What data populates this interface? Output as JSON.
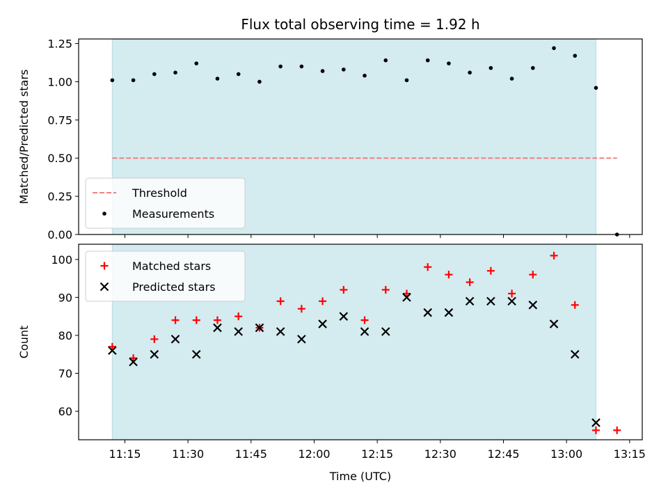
{
  "title": "Flux total observing time = 1.92 h",
  "chart_data": [
    {
      "type": "scatter",
      "ylabel": "Matched/Predicted stars",
      "ylim": [
        0,
        1.28
      ],
      "yticks": [
        "0.00",
        "0.25",
        "0.50",
        "0.75",
        "1.00",
        "1.25"
      ],
      "xlim": [
        "11:04",
        "13:18"
      ],
      "shaded_span": [
        "11:12",
        "13:07"
      ],
      "threshold": {
        "name": "Threshold",
        "value": 0.5,
        "x": [
          "11:12",
          "13:12"
        ],
        "color": "#f08080"
      },
      "series": [
        {
          "name": "Measurements",
          "color": "#000000",
          "points": [
            [
              "11:12",
              1.01
            ],
            [
              "11:17",
              1.01
            ],
            [
              "11:22",
              1.05
            ],
            [
              "11:27",
              1.06
            ],
            [
              "11:32",
              1.12
            ],
            [
              "11:37",
              1.02
            ],
            [
              "11:42",
              1.05
            ],
            [
              "11:47",
              1.0
            ],
            [
              "11:52",
              1.1
            ],
            [
              "11:57",
              1.1
            ],
            [
              "12:02",
              1.07
            ],
            [
              "12:07",
              1.08
            ],
            [
              "12:12",
              1.04
            ],
            [
              "12:17",
              1.14
            ],
            [
              "12:22",
              1.01
            ],
            [
              "12:27",
              1.14
            ],
            [
              "12:32",
              1.12
            ],
            [
              "12:37",
              1.06
            ],
            [
              "12:42",
              1.09
            ],
            [
              "12:47",
              1.02
            ],
            [
              "12:52",
              1.09
            ],
            [
              "12:57",
              1.22
            ],
            [
              "13:02",
              1.17
            ],
            [
              "13:07",
              0.96
            ],
            [
              "13:12",
              0.0
            ]
          ]
        }
      ],
      "legend": "lower-left"
    },
    {
      "type": "scatter",
      "ylabel": "Count",
      "xlabel": "Time (UTC)",
      "ylim": [
        52.5,
        104
      ],
      "yticks": [
        "60",
        "70",
        "80",
        "90",
        "100"
      ],
      "xlim": [
        "11:04",
        "13:18"
      ],
      "xticks": [
        "11:15",
        "11:30",
        "11:45",
        "12:00",
        "12:15",
        "12:30",
        "12:45",
        "13:00",
        "13:15"
      ],
      "shaded_span": [
        "11:12",
        "13:07"
      ],
      "series": [
        {
          "name": "Matched stars",
          "marker": "plus",
          "color": "#ff0000",
          "points": [
            [
              "11:12",
              77
            ],
            [
              "11:17",
              74
            ],
            [
              "11:22",
              79
            ],
            [
              "11:27",
              84
            ],
            [
              "11:32",
              84
            ],
            [
              "11:37",
              84
            ],
            [
              "11:42",
              85
            ],
            [
              "11:47",
              82
            ],
            [
              "11:52",
              89
            ],
            [
              "11:57",
              87
            ],
            [
              "12:02",
              89
            ],
            [
              "12:07",
              92
            ],
            [
              "12:12",
              84
            ],
            [
              "12:17",
              92
            ],
            [
              "12:22",
              91
            ],
            [
              "12:27",
              98
            ],
            [
              "12:32",
              96
            ],
            [
              "12:37",
              94
            ],
            [
              "12:42",
              97
            ],
            [
              "12:47",
              91
            ],
            [
              "12:52",
              96
            ],
            [
              "12:57",
              101
            ],
            [
              "13:02",
              88
            ],
            [
              "13:07",
              55
            ],
            [
              "13:12",
              55
            ]
          ]
        },
        {
          "name": "Predicted stars",
          "marker": "x",
          "color": "#000000",
          "points": [
            [
              "11:12",
              76
            ],
            [
              "11:17",
              73
            ],
            [
              "11:22",
              75
            ],
            [
              "11:27",
              79
            ],
            [
              "11:32",
              75
            ],
            [
              "11:37",
              82
            ],
            [
              "11:42",
              81
            ],
            [
              "11:47",
              82
            ],
            [
              "11:52",
              81
            ],
            [
              "11:57",
              79
            ],
            [
              "12:02",
              83
            ],
            [
              "12:07",
              85
            ],
            [
              "12:12",
              81
            ],
            [
              "12:17",
              81
            ],
            [
              "12:22",
              90
            ],
            [
              "12:27",
              86
            ],
            [
              "12:32",
              86
            ],
            [
              "12:37",
              89
            ],
            [
              "12:42",
              89
            ],
            [
              "12:47",
              89
            ],
            [
              "12:52",
              88
            ],
            [
              "12:57",
              83
            ],
            [
              "13:02",
              75
            ],
            [
              "13:07",
              57
            ]
          ]
        }
      ],
      "legend": "upper-left"
    }
  ],
  "colors": {
    "shade": "#d4ebf0",
    "axis": "#000000"
  }
}
